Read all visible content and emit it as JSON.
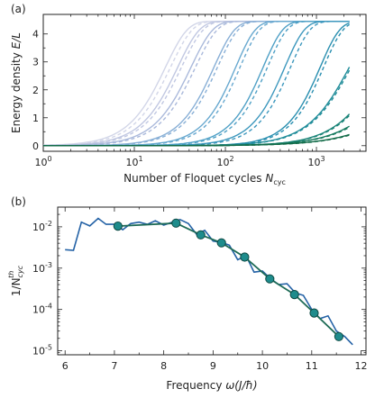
{
  "chart_data": [
    {
      "panel": "(a)",
      "type": "line",
      "xscale": "log",
      "xlabel_main": "Number of Floquet cycles ",
      "xlabel_var": "N",
      "xlabel_sub": "cyc",
      "ylabel_main": "Energy density ",
      "ylabel_var": "E/L",
      "xlim": [
        1,
        3500
      ],
      "ylim": [
        -0.2,
        4.7
      ],
      "xticks": [
        {
          "value": 1,
          "base": "10",
          "exp": "0"
        },
        {
          "value": 10,
          "base": "10",
          "exp": "1"
        },
        {
          "value": 100,
          "base": "10",
          "exp": "2"
        },
        {
          "value": 1000,
          "base": "10",
          "exp": "3"
        }
      ],
      "yticks": [
        0,
        1,
        2,
        3,
        4
      ],
      "saturation": 4.45,
      "series_note": "solid = simulation, dashed = fit; colors light lavender → dark teal",
      "series": [
        {
          "color": "#d2d6e8",
          "tau": 22,
          "n": 1.8,
          "tau_fit": 25
        },
        {
          "color": "#c1c8e2",
          "tau": 30,
          "n": 1.8,
          "tau_fit": 33
        },
        {
          "color": "#aab9db",
          "tau": 42,
          "n": 1.8,
          "tau_fit": 47
        },
        {
          "color": "#88afd6",
          "tau": 75,
          "n": 1.9,
          "tau_fit": 82
        },
        {
          "color": "#67a8cf",
          "tau": 130,
          "n": 2.0,
          "tau_fit": 145
        },
        {
          "color": "#4fa0c6",
          "tau": 260,
          "n": 2.0,
          "tau_fit": 290
        },
        {
          "color": "#3c97bd",
          "tau": 450,
          "n": 2.0,
          "tau_fit": 520
        },
        {
          "color": "#2a8fb0",
          "tau": 1100,
          "n": 2.0,
          "tau_fit": 1200
        },
        {
          "color": "#1f8c99",
          "tau": 2300,
          "n": 1.6,
          "tau_fit": 2400
        },
        {
          "color": "#1a8478",
          "tau": 5200,
          "n": 1.5,
          "tau_fit": 5400
        },
        {
          "color": "#167a5e",
          "tau": 9000,
          "n": 1.3,
          "tau_fit": 9400
        },
        {
          "color": "#116a47",
          "tau": 18000,
          "n": 1.15,
          "tau_fit": 19000
        }
      ]
    },
    {
      "panel": "(b)",
      "type": "line+scatter",
      "yscale": "log",
      "xlabel_main": "Frequency ",
      "xlabel_var": "ω(J/ħ)",
      "ylabel_base": "1/N",
      "ylabel_sub": "cyc",
      "ylabel_sup": "th",
      "xlim": [
        5.85,
        12.1
      ],
      "ylim": [
        8e-06,
        0.03
      ],
      "xticks": [
        6,
        7,
        8,
        9,
        10,
        11,
        12
      ],
      "yticks": [
        {
          "value": 0.01,
          "base": "10",
          "exp": "-2"
        },
        {
          "value": 0.001,
          "base": "10",
          "exp": "-3"
        },
        {
          "value": 0.0001,
          "base": "10",
          "exp": "-4"
        },
        {
          "value": 1e-05,
          "base": "10",
          "exp": "-5"
        }
      ],
      "series": [
        {
          "name": "",
          "style": "line",
          "color": "#2462a6",
          "x": [
            6.0,
            6.17,
            6.33,
            6.5,
            6.67,
            6.83,
            7.0,
            7.17,
            7.33,
            7.5,
            7.67,
            7.83,
            8.0,
            8.17,
            8.33,
            8.5,
            8.67,
            8.83,
            9.0,
            9.17,
            9.33,
            9.5,
            9.67,
            9.83,
            10.0,
            10.17,
            10.33,
            10.5,
            10.67,
            10.83,
            11.0,
            11.17,
            11.33,
            11.5,
            11.67,
            11.83
          ],
          "y": [
            0.0028,
            0.0027,
            0.013,
            0.0105,
            0.016,
            0.0115,
            0.0115,
            0.0085,
            0.012,
            0.013,
            0.0115,
            0.014,
            0.011,
            0.013,
            0.015,
            0.012,
            0.0065,
            0.0082,
            0.0045,
            0.0042,
            0.0036,
            0.0016,
            0.002,
            0.0008,
            0.00085,
            0.00055,
            0.0004,
            0.00042,
            0.00025,
            0.00022,
            0.0001,
            6e-05,
            7e-05,
            3e-05,
            2.2e-05,
            1.4e-05
          ]
        },
        {
          "name": "",
          "style": "line+markers",
          "color": "#1e6b56",
          "marker_color": "#1e8c8c",
          "x": [
            7.07,
            8.25,
            8.75,
            9.17,
            9.64,
            10.15,
            10.65,
            11.05,
            11.55
          ],
          "y": [
            0.0104,
            0.0123,
            0.0064,
            0.0041,
            0.00185,
            0.00055,
            0.00023,
            8.2e-05,
            2.2e-05
          ]
        }
      ]
    }
  ]
}
